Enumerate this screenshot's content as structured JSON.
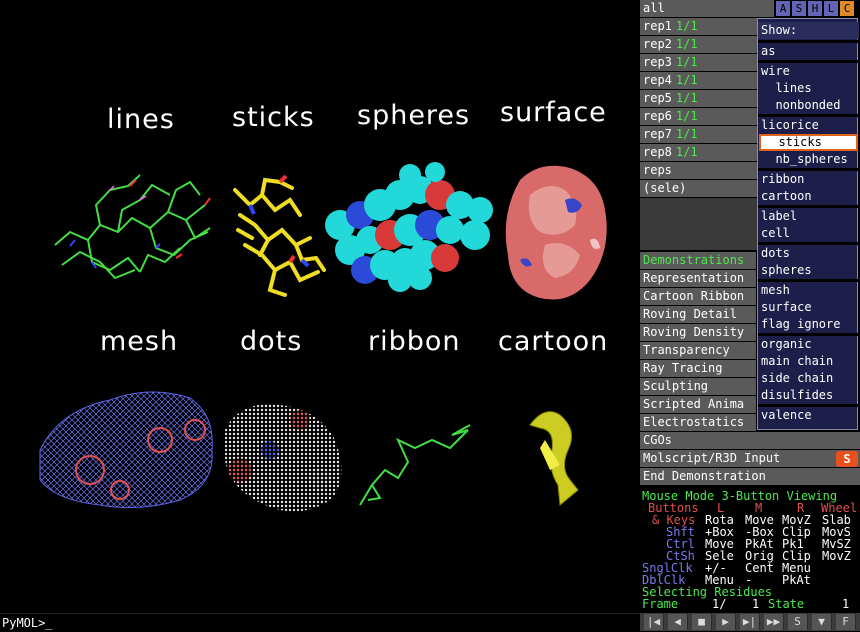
{
  "viewport": {
    "labels": [
      "lines",
      "sticks",
      "spheres",
      "surface",
      "mesh",
      "dots",
      "ribbon",
      "cartoon"
    ]
  },
  "command_prompt": "PyMOL>_",
  "objects": {
    "all": {
      "name": "all",
      "buttons": [
        "A",
        "S",
        "H",
        "L",
        "C"
      ]
    },
    "rows": [
      {
        "name": "rep1",
        "state": "1/1"
      },
      {
        "name": "rep2",
        "state": "1/1"
      },
      {
        "name": "rep3",
        "state": "1/1"
      },
      {
        "name": "rep4",
        "state": "1/1"
      },
      {
        "name": "rep5",
        "state": "1/1"
      },
      {
        "name": "rep6",
        "state": "1/1"
      },
      {
        "name": "rep7",
        "state": "1/1"
      },
      {
        "name": "rep8",
        "state": "1/1"
      },
      {
        "name": "reps",
        "state": ""
      },
      {
        "name": "(sele)",
        "state": ""
      }
    ]
  },
  "show_menu": {
    "title": "Show:",
    "groups": [
      [
        "as"
      ],
      [
        "wire",
        "  lines",
        "  nonbonded"
      ],
      [
        "licorice",
        "  sticks",
        "  nb_spheres"
      ],
      [
        "ribbon",
        "cartoon"
      ],
      [
        "label",
        "cell"
      ],
      [
        "dots",
        "spheres"
      ],
      [
        "mesh",
        "surface",
        "flag ignore"
      ],
      [
        "organic",
        "main chain",
        "side chain",
        "disulfides"
      ],
      [
        "valence"
      ]
    ],
    "selected": "  sticks"
  },
  "wizard": {
    "items": [
      "Demonstrations",
      "Representation",
      "Cartoon Ribbon",
      "Roving Detail",
      "Roving Density",
      "Transparency",
      "Ray Tracing",
      "Sculpting",
      "Scripted Anima",
      "Electrostatics",
      "CGOs",
      "Molscript/R3D Input",
      "End Demonstration"
    ]
  },
  "mouse": {
    "mode": "Mouse Mode 3-Button Viewing",
    "header": [
      "Buttons",
      "L",
      "M",
      "R",
      "Wheel"
    ],
    "rows": [
      [
        "& Keys",
        "Rota",
        "Move",
        "MovZ",
        "Slab"
      ],
      [
        "Shft",
        "+Box",
        "-Box",
        "Clip",
        "MovS"
      ],
      [
        "Ctrl",
        "Move",
        "PkAt",
        "Pk1",
        "MvSZ"
      ],
      [
        "CtSh",
        "Sele",
        "Orig",
        "Clip",
        "MovZ"
      ],
      [
        "SnglClk",
        "+/-",
        "Cent",
        "Menu",
        ""
      ],
      [
        "DblClk",
        "Menu",
        "-",
        "PkAt",
        ""
      ]
    ],
    "selecting": "Selecting Residues",
    "frame_label": "Frame",
    "frame_value": "1/",
    "frame_total": "1",
    "state_label": "State",
    "state_value": "1"
  },
  "colors": {
    "green": "#4ee84e",
    "accent": "#e06418",
    "menu_bg": "#1e1e4a",
    "button_gray": "#5a5a5a"
  },
  "vcr_buttons": [
    "first-icon",
    "prev-icon",
    "stop-icon",
    "play-icon",
    "next-icon",
    "last-icon",
    "scene-icon",
    "menu-icon",
    "full-icon"
  ]
}
